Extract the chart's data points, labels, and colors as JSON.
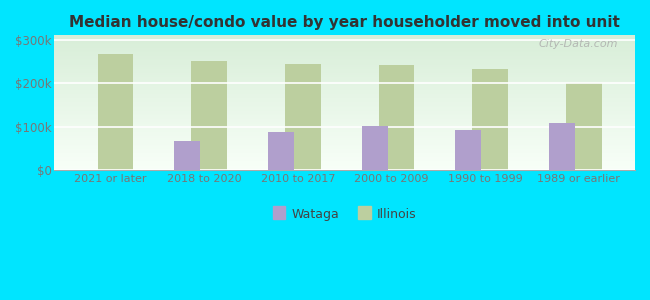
{
  "title": "Median house/condo value by year householder moved into unit",
  "categories": [
    "2021 or later",
    "2018 to 2020",
    "2010 to 2017",
    "2000 to 2009",
    "1990 to 1999",
    "1989 or earlier"
  ],
  "wataga": [
    0,
    67000,
    89000,
    101000,
    92000,
    108000
  ],
  "illinois": [
    268000,
    252000,
    243000,
    241000,
    232000,
    201000
  ],
  "wataga_color": "#b09fcc",
  "illinois_color": "#bccf9f",
  "background_outer": "#00e5ff",
  "background_inner_top": "#d8eed8",
  "background_inner_bottom": "#f8fff8",
  "ylabel_ticks": [
    "$0",
    "$100k",
    "$200k",
    "$300k"
  ],
  "ytick_vals": [
    0,
    100000,
    200000,
    300000
  ],
  "ylim": [
    0,
    310000
  ],
  "wataga_bar_width": 0.28,
  "illinois_bar_width": 0.38,
  "legend_wataga": "Wataga",
  "legend_illinois": "Illinois",
  "watermark": "City-Data.com"
}
